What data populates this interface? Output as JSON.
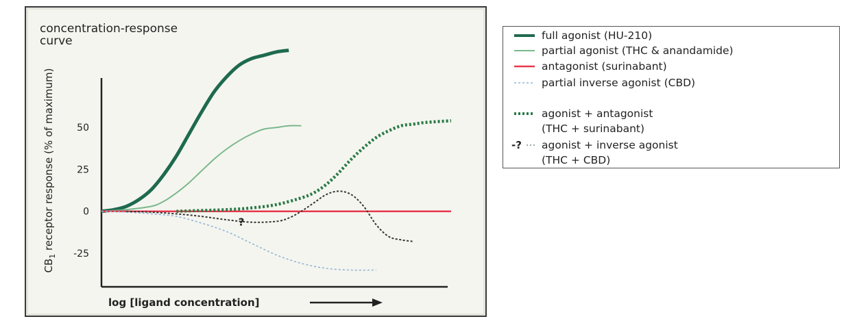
{
  "chart_data": {
    "type": "line",
    "title": "concentration-response curve",
    "xlabel": "log [ligand concentration]",
    "ylabel": "CB1 receptor response (% of maximum)",
    "ylabel_main": "CB",
    "ylabel_sub": "1",
    "ylabel_rest": " receptor response (% of maximum)",
    "yticks": [
      "50",
      "25",
      "0",
      "-25"
    ],
    "ylim": [
      -45,
      97
    ],
    "question_mark": "?",
    "colors": {
      "full": "#1e6a4f",
      "partial": "#79b88c",
      "antagonist": "#e8384c",
      "inverse": "#8fb6d6",
      "agonist_antagonist": "#2a7a47",
      "agonist_inverse": "#333333"
    },
    "series": [
      {
        "key": "full",
        "name": "full agonist (HU-210)",
        "style": "solid-thick",
        "points": [
          [
            0,
            0
          ],
          [
            0.5,
            1
          ],
          [
            1,
            3
          ],
          [
            1.5,
            7
          ],
          [
            2,
            13
          ],
          [
            2.5,
            22
          ],
          [
            3,
            33
          ],
          [
            3.5,
            46
          ],
          [
            4,
            59
          ],
          [
            4.5,
            71
          ],
          [
            5,
            80
          ],
          [
            5.5,
            87
          ],
          [
            6,
            91
          ],
          [
            6.5,
            93
          ],
          [
            7,
            95
          ],
          [
            7.5,
            96
          ]
        ]
      },
      {
        "key": "partial",
        "name": "partial agonist (THC & anandamide)",
        "style": "solid-thin",
        "points": [
          [
            0,
            0
          ],
          [
            1,
            1
          ],
          [
            2,
            3
          ],
          [
            2.5,
            6
          ],
          [
            3,
            11
          ],
          [
            3.5,
            17
          ],
          [
            4,
            24
          ],
          [
            4.5,
            31
          ],
          [
            5,
            37
          ],
          [
            5.5,
            42
          ],
          [
            6,
            46
          ],
          [
            6.5,
            49
          ],
          [
            7,
            50
          ],
          [
            7.5,
            51
          ],
          [
            8,
            51
          ]
        ]
      },
      {
        "key": "antagonist",
        "name": "antagonist (surinabant)",
        "style": "solid-red",
        "points": [
          [
            0,
            0
          ],
          [
            14,
            0
          ]
        ]
      },
      {
        "key": "inverse",
        "name": "partial inverse agonist (CBD)",
        "style": "dotted-light",
        "points": [
          [
            0,
            0
          ],
          [
            1,
            -0.5
          ],
          [
            2,
            -1.5
          ],
          [
            3,
            -3
          ],
          [
            4,
            -7
          ],
          [
            5,
            -12
          ],
          [
            6,
            -19
          ],
          [
            7,
            -26
          ],
          [
            8,
            -31
          ],
          [
            9,
            -34
          ],
          [
            10,
            -35
          ],
          [
            11,
            -35
          ]
        ]
      },
      {
        "key": "agonist_antagonist",
        "name": "agonist + antagonist",
        "name2": "(THC + surinabant)",
        "style": "dotted-thick",
        "points": [
          [
            3,
            0
          ],
          [
            4,
            0.5
          ],
          [
            5,
            1
          ],
          [
            6,
            2
          ],
          [
            7,
            4
          ],
          [
            8,
            8
          ],
          [
            8.5,
            11
          ],
          [
            9,
            16
          ],
          [
            9.5,
            23
          ],
          [
            10,
            31
          ],
          [
            10.5,
            38
          ],
          [
            11,
            44
          ],
          [
            11.5,
            48
          ],
          [
            12,
            51
          ],
          [
            12.5,
            52
          ],
          [
            13,
            53
          ],
          [
            14,
            54
          ]
        ]
      },
      {
        "key": "agonist_inverse",
        "name": "agonist + inverse agonist",
        "name2": "(THC + CBD)",
        "style": "dotted-dark",
        "legend_marker_text": "-?",
        "points": [
          [
            1,
            0
          ],
          [
            2,
            -0.5
          ],
          [
            3,
            -1.5
          ],
          [
            4,
            -3
          ],
          [
            5,
            -5
          ],
          [
            6,
            -6.5
          ],
          [
            7,
            -6
          ],
          [
            7.5,
            -4
          ],
          [
            8,
            0
          ],
          [
            8.5,
            5
          ],
          [
            9,
            10
          ],
          [
            9.5,
            12
          ],
          [
            10,
            10
          ],
          [
            10.5,
            3
          ],
          [
            11,
            -8
          ],
          [
            11.5,
            -15
          ],
          [
            12,
            -17
          ],
          [
            12.5,
            -18
          ]
        ]
      }
    ],
    "xlim": [
      0,
      14
    ],
    "legend_position": "right"
  }
}
